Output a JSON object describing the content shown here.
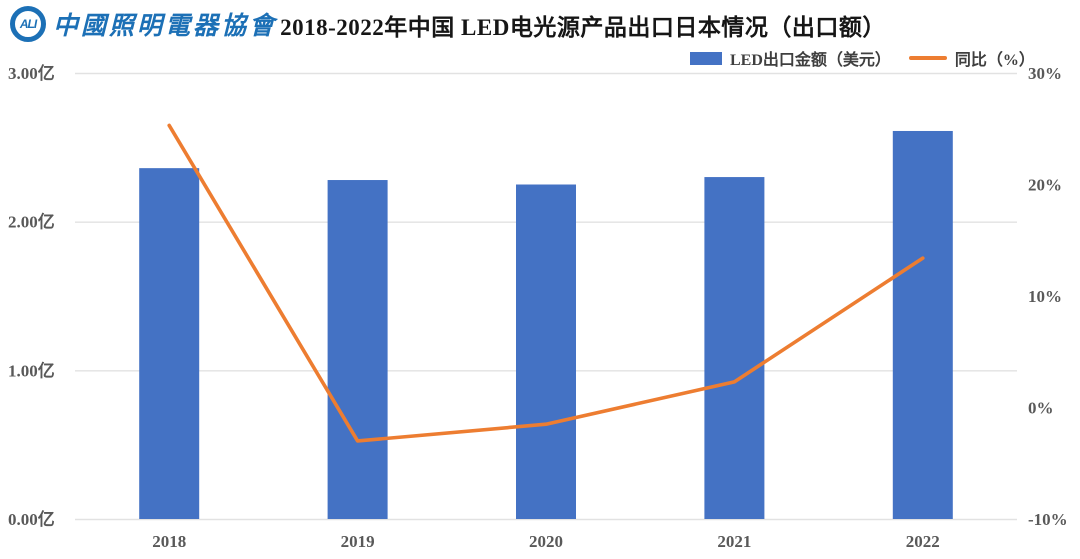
{
  "header": {
    "logo_mark_text": "ALI",
    "logo_org_name": "中國照明電器協會",
    "title": "2018-2022年中国 LED电光源产品出口日本情况（出口额）"
  },
  "legend": [
    {
      "label": "LED出口金额（美元）",
      "type": "bar",
      "color": "#4472c4"
    },
    {
      "label": "同比（%）",
      "type": "line",
      "color": "#ed7d31"
    }
  ],
  "chart_data": {
    "type": "bar+line combo",
    "title": "2018-2022年中国 LED电光源产品出口日本情况（出口额）",
    "categories": [
      "2018",
      "2019",
      "2020",
      "2021",
      "2022"
    ],
    "series": [
      {
        "name": "LED出口金额（美元）",
        "type": "bar",
        "axis": "left",
        "unit": "亿美元",
        "values": [
          2.36,
          2.28,
          2.25,
          2.3,
          2.61
        ],
        "color": "#4472c4"
      },
      {
        "name": "同比（%）",
        "type": "line",
        "axis": "right",
        "unit": "%",
        "values": [
          25.3,
          -3.0,
          -1.5,
          2.3,
          13.4
        ],
        "color": "#ed7d31"
      }
    ],
    "left_axis": {
      "ticks": [
        "3.00亿",
        "2.00亿",
        "1.00亿",
        "0.00亿"
      ],
      "min": 0,
      "max": 3
    },
    "right_axis": {
      "ticks": [
        "30%",
        "20%",
        "10%",
        "0%",
        "-10%"
      ],
      "min": -10,
      "max": 30
    },
    "grid": true,
    "legend_position": "top-right",
    "colors": {
      "grid_line": "#e2e2e2",
      "axis_text": "#595959",
      "title_text": "#161616",
      "logo_blue": "#1c70b6"
    }
  }
}
